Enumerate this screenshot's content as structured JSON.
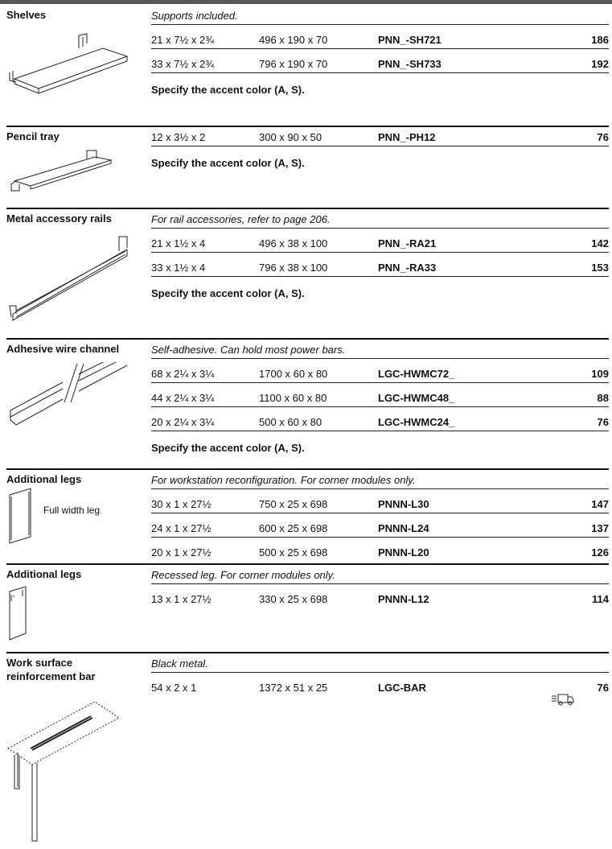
{
  "sections": [
    {
      "title": "Shelves",
      "note": "Supports included.",
      "rows": [
        [
          "21 x 7½ x 2¾",
          "496 x 190 x 70",
          "PNN_-SH721",
          186
        ],
        [
          "33 x 7½ x 2¾",
          "796 x 190 x 70",
          "PNN_-SH733",
          192
        ]
      ],
      "footer": "Specify the accent color (A, S)."
    },
    {
      "title": "Pencil tray",
      "rows": [
        [
          "12 x 3½ x 2",
          "300 x 90 x 50",
          "PNN_-PH12",
          76
        ]
      ],
      "footer": "Specify the accent color (A, S)."
    },
    {
      "title": "Metal accessory rails",
      "note": "For rail accessories, refer to page 206.",
      "rows": [
        [
          "21 x 1½ x 4",
          "496 x 38 x 100",
          "PNN_-RA21",
          142
        ],
        [
          "33 x 1½ x 4",
          "796 x 38 x 100",
          "PNN_-RA33",
          153
        ]
      ],
      "footer": "Specify the accent color (A, S)."
    },
    {
      "title": "Adhesive wire channel",
      "note": "Self-adhesive. Can hold most power bars.",
      "rows": [
        [
          "68 x 2¼ x 3¼",
          "1700 x 60 x 80",
          "LGC-HWMC72_",
          109
        ],
        [
          "44 x 2¼ x 3¼",
          "1100 x 60 x 80",
          "LGC-HWMC48_",
          88
        ],
        [
          "20 x 2¼ x 3¼",
          "500 x 60 x 80",
          "LGC-HWMC24_",
          76
        ]
      ],
      "footer": "Specify the accent color (A, S)."
    },
    {
      "title": "Additional legs",
      "note": "For workstation reconfiguration. For corner modules only.",
      "image_label": "Full width leg",
      "rows": [
        [
          "30 x 1 x 27½",
          "750 x 25 x 698",
          "PNNN-L30",
          147
        ],
        [
          "24 x 1 x 27½",
          "600 x 25 x 698",
          "PNNN-L24",
          137
        ],
        [
          "20 x 1 x 27½",
          "500 x 25 x 698",
          "PNNN-L20",
          126
        ]
      ]
    },
    {
      "title": "Additional legs",
      "note": "Recessed leg. For corner modules only.",
      "rows": [
        [
          "13 x 1 x 27½",
          "330 x 25 x 698",
          "PNNN-L12",
          114
        ]
      ]
    },
    {
      "title": "Work surface reinforcement bar",
      "note": "Black metal.",
      "rows": [
        [
          "54 x 2 x 1",
          "1372 x 51 x 25",
          "LGC-BAR",
          76
        ]
      ]
    }
  ]
}
